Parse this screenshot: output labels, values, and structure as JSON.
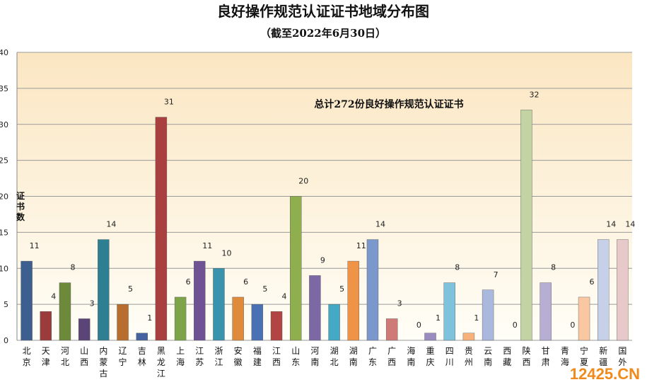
{
  "chart_data": {
    "type": "bar",
    "title": "良好操作规范认证证书地域分布图",
    "subtitle": "（截至2022年6月30日）",
    "ylabel": "证书数",
    "annotation": "总计272份良好操作规范认证证书",
    "ylim": [
      0,
      40
    ],
    "yticks": [
      0,
      5,
      10,
      15,
      20,
      25,
      30,
      35,
      40
    ],
    "grid": true,
    "legend": "none",
    "categories": [
      "北京",
      "天津",
      "河北",
      "山西",
      "内蒙古",
      "辽宁",
      "吉林",
      "黑龙江",
      "上海",
      "江苏",
      "浙江",
      "安徽",
      "福建",
      "江西",
      "山东",
      "河南",
      "湖北",
      "湖南",
      "广东",
      "广西",
      "海南",
      "重庆",
      "四川",
      "贵州",
      "云南",
      "西藏",
      "陕西",
      "甘肃",
      "青海",
      "宁夏",
      "新疆",
      "国外"
    ],
    "values": [
      11,
      4,
      8,
      3,
      14,
      5,
      1,
      31,
      6,
      11,
      10,
      6,
      5,
      4,
      20,
      9,
      5,
      11,
      14,
      3,
      0,
      1,
      8,
      1,
      7,
      0,
      32,
      8,
      0,
      6,
      14,
      14
    ],
    "colors": [
      "#3d5f8f",
      "#9b3b3c",
      "#6d8a3b",
      "#5b4478",
      "#2f7f92",
      "#b86e2e",
      "#4463a0",
      "#a93f3f",
      "#7ea44a",
      "#6e5294",
      "#3a93ad",
      "#e08a3c",
      "#4a71b3",
      "#b24444",
      "#8faf4f",
      "#7d68a6",
      "#44a9c4",
      "#ef9446",
      "#7b98cd",
      "#d07a78",
      "#a8c07a",
      "#9a8cc0",
      "#7ec2dc",
      "#f6b27a",
      "#a9b8dc",
      "#e8b4b2",
      "#c3d3a3",
      "#b7aed3",
      "#b8dce9",
      "#f9c7a2",
      "#c6d0e8",
      "#e8c9c9"
    ]
  },
  "watermark": "12425.CN"
}
